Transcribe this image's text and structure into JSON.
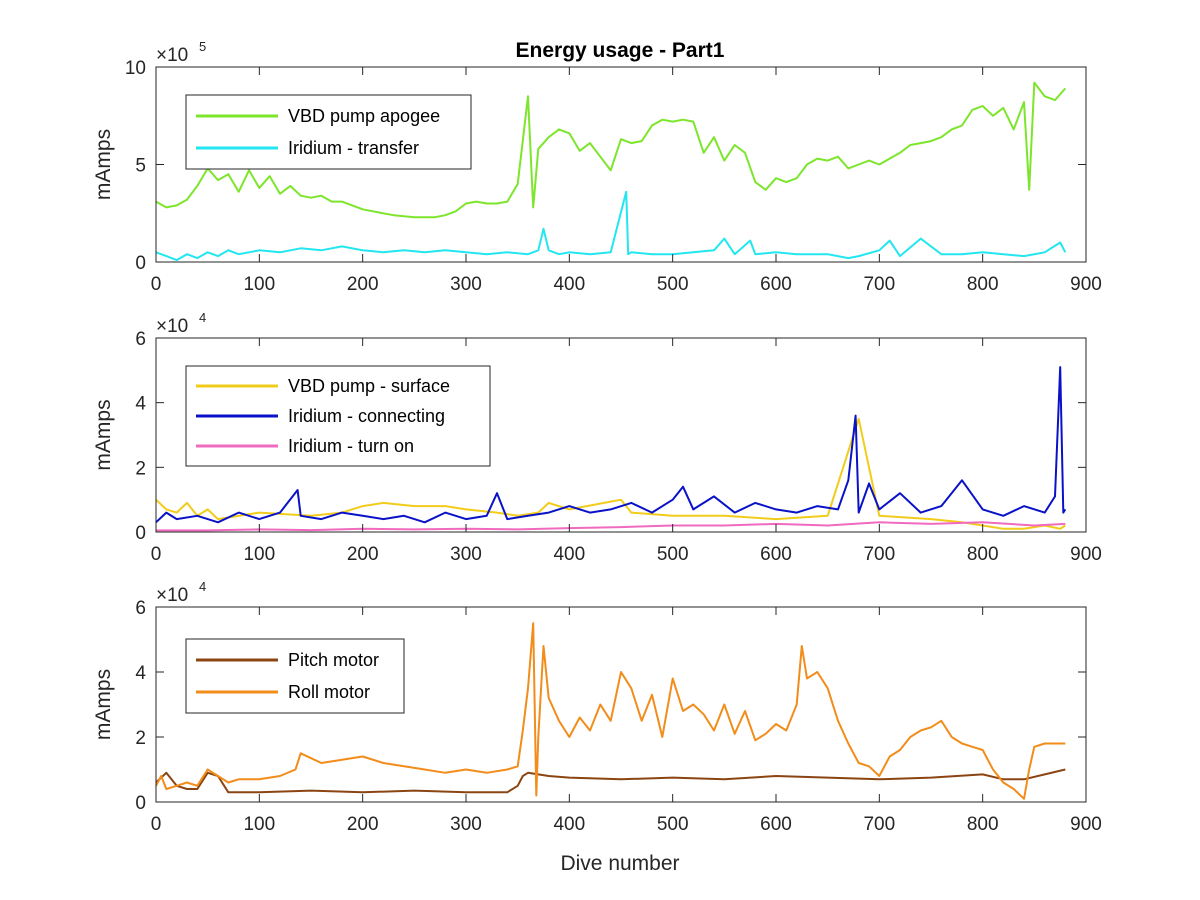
{
  "chart_data": [
    {
      "type": "line",
      "title": "Energy usage - Part1",
      "xlabel": "",
      "ylabel": "mAmps",
      "xlim": [
        0,
        900
      ],
      "ylim": [
        0,
        10
      ],
      "y_multiplier": "10",
      "y_exponent": "5",
      "xticks": [
        "0",
        "100",
        "200",
        "300",
        "400",
        "500",
        "600",
        "700",
        "800",
        "900"
      ],
      "yticks": [
        "0",
        "5",
        "10"
      ],
      "legend_position": "upper-left",
      "series": [
        {
          "name": "VBD pump apogee",
          "color": "#7de52b",
          "x": [
            0,
            10,
            20,
            30,
            40,
            50,
            60,
            70,
            80,
            90,
            100,
            110,
            120,
            130,
            140,
            150,
            160,
            170,
            180,
            190,
            200,
            210,
            220,
            230,
            240,
            250,
            260,
            270,
            280,
            290,
            300,
            310,
            320,
            330,
            340,
            350,
            360,
            365,
            370,
            380,
            390,
            400,
            410,
            420,
            430,
            440,
            450,
            460,
            470,
            480,
            490,
            500,
            510,
            520,
            530,
            540,
            550,
            560,
            570,
            580,
            590,
            600,
            610,
            620,
            630,
            640,
            650,
            660,
            670,
            680,
            690,
            700,
            710,
            720,
            730,
            740,
            750,
            760,
            770,
            780,
            790,
            800,
            810,
            820,
            830,
            840,
            845,
            850,
            860,
            870,
            880
          ],
          "values": [
            3.1,
            2.8,
            2.9,
            3.2,
            3.9,
            4.8,
            4.2,
            4.5,
            3.6,
            4.7,
            3.8,
            4.4,
            3.5,
            3.9,
            3.4,
            3.3,
            3.4,
            3.1,
            3.1,
            2.9,
            2.7,
            2.6,
            2.5,
            2.4,
            2.35,
            2.3,
            2.3,
            2.3,
            2.4,
            2.6,
            3.0,
            3.1,
            3.0,
            3.0,
            3.1,
            4.0,
            8.5,
            2.8,
            5.8,
            6.4,
            6.8,
            6.6,
            5.7,
            6.1,
            5.4,
            4.7,
            6.3,
            6.1,
            6.2,
            7.0,
            7.3,
            7.2,
            7.3,
            7.2,
            5.6,
            6.4,
            5.2,
            6.0,
            5.6,
            4.1,
            3.7,
            4.3,
            4.1,
            4.3,
            5.0,
            5.3,
            5.2,
            5.4,
            4.8,
            5.0,
            5.2,
            5.0,
            5.3,
            5.6,
            6.0,
            6.1,
            6.2,
            6.4,
            6.8,
            7.0,
            7.8,
            8.0,
            7.5,
            7.9,
            6.8,
            8.2,
            3.7,
            9.2,
            8.5,
            8.3,
            8.9
          ]
        },
        {
          "name": "Iridium - transfer",
          "color": "#22e6f0",
          "x": [
            0,
            10,
            20,
            30,
            40,
            50,
            60,
            70,
            80,
            90,
            100,
            120,
            140,
            160,
            180,
            200,
            220,
            240,
            260,
            280,
            300,
            320,
            340,
            360,
            370,
            375,
            380,
            390,
            400,
            420,
            440,
            455,
            457,
            460,
            480,
            500,
            520,
            540,
            550,
            560,
            575,
            580,
            600,
            620,
            650,
            670,
            680,
            700,
            710,
            720,
            740,
            760,
            780,
            800,
            820,
            840,
            860,
            875,
            880
          ],
          "values": [
            0.5,
            0.3,
            0.1,
            0.4,
            0.2,
            0.5,
            0.3,
            0.6,
            0.4,
            0.5,
            0.6,
            0.5,
            0.7,
            0.6,
            0.8,
            0.6,
            0.5,
            0.6,
            0.5,
            0.6,
            0.5,
            0.4,
            0.5,
            0.4,
            0.6,
            1.7,
            0.6,
            0.4,
            0.5,
            0.4,
            0.5,
            3.6,
            0.4,
            0.5,
            0.4,
            0.4,
            0.5,
            0.6,
            1.2,
            0.4,
            1.1,
            0.4,
            0.5,
            0.4,
            0.4,
            0.2,
            0.3,
            0.6,
            1.1,
            0.3,
            1.2,
            0.4,
            0.4,
            0.5,
            0.4,
            0.3,
            0.5,
            1.0,
            0.5
          ]
        }
      ]
    },
    {
      "type": "line",
      "title": "",
      "xlabel": "",
      "ylabel": "mAmps",
      "xlim": [
        0,
        900
      ],
      "ylim": [
        0,
        6
      ],
      "y_multiplier": "10",
      "y_exponent": "4",
      "xticks": [
        "0",
        "100",
        "200",
        "300",
        "400",
        "500",
        "600",
        "700",
        "800",
        "900"
      ],
      "yticks": [
        "0",
        "2",
        "4",
        "6"
      ],
      "legend_position": "upper-left",
      "series": [
        {
          "name": "VBD pump - surface",
          "color": "#f2cc1a",
          "x": [
            0,
            10,
            20,
            30,
            40,
            50,
            60,
            100,
            150,
            180,
            200,
            220,
            250,
            280,
            300,
            330,
            350,
            370,
            380,
            400,
            450,
            460,
            500,
            550,
            600,
            650,
            680,
            700,
            750,
            780,
            800,
            820,
            840,
            860,
            875,
            880
          ],
          "values": [
            1.0,
            0.7,
            0.6,
            0.9,
            0.5,
            0.7,
            0.4,
            0.6,
            0.5,
            0.6,
            0.8,
            0.9,
            0.8,
            0.8,
            0.7,
            0.6,
            0.5,
            0.6,
            0.9,
            0.7,
            1.0,
            0.6,
            0.5,
            0.5,
            0.4,
            0.5,
            3.5,
            0.5,
            0.4,
            0.3,
            0.2,
            0.1,
            0.1,
            0.2,
            0.1,
            0.2
          ]
        },
        {
          "name": "Iridium - connecting",
          "color": "#0a12c8",
          "x": [
            0,
            10,
            20,
            40,
            60,
            80,
            100,
            120,
            137,
            140,
            160,
            180,
            200,
            220,
            240,
            260,
            280,
            300,
            320,
            330,
            340,
            360,
            380,
            400,
            420,
            440,
            460,
            480,
            500,
            510,
            520,
            540,
            560,
            580,
            600,
            620,
            640,
            660,
            670,
            677,
            680,
            690,
            700,
            720,
            740,
            760,
            780,
            800,
            820,
            840,
            860,
            870,
            875,
            878,
            880
          ],
          "values": [
            0.3,
            0.6,
            0.4,
            0.5,
            0.3,
            0.6,
            0.4,
            0.6,
            1.3,
            0.5,
            0.4,
            0.6,
            0.5,
            0.4,
            0.5,
            0.3,
            0.6,
            0.4,
            0.5,
            1.2,
            0.4,
            0.5,
            0.6,
            0.8,
            0.6,
            0.7,
            0.9,
            0.6,
            1.0,
            1.4,
            0.7,
            1.1,
            0.6,
            0.9,
            0.7,
            0.6,
            0.8,
            0.7,
            1.6,
            3.6,
            0.6,
            1.5,
            0.7,
            1.2,
            0.6,
            0.8,
            1.6,
            0.7,
            0.5,
            0.8,
            0.6,
            1.1,
            5.1,
            0.6,
            0.7
          ]
        },
        {
          "name": "Iridium - turn on",
          "color": "#f06bbf",
          "x": [
            0,
            50,
            100,
            150,
            200,
            250,
            300,
            350,
            400,
            450,
            500,
            550,
            600,
            650,
            700,
            750,
            800,
            850,
            880
          ],
          "values": [
            0.05,
            0.05,
            0.08,
            0.06,
            0.1,
            0.08,
            0.1,
            0.08,
            0.12,
            0.15,
            0.2,
            0.2,
            0.25,
            0.2,
            0.3,
            0.25,
            0.3,
            0.2,
            0.25
          ]
        }
      ]
    },
    {
      "type": "line",
      "title": "",
      "xlabel": "Dive number",
      "ylabel": "mAmps",
      "xlim": [
        0,
        900
      ],
      "ylim": [
        0,
        6
      ],
      "y_multiplier": "10",
      "y_exponent": "4",
      "xticks": [
        "0",
        "100",
        "200",
        "300",
        "400",
        "500",
        "600",
        "700",
        "800",
        "900"
      ],
      "yticks": [
        "0",
        "2",
        "4",
        "6"
      ],
      "legend_position": "upper-left",
      "series": [
        {
          "name": "Pitch motor",
          "color": "#8b4513",
          "x": [
            0,
            10,
            20,
            30,
            40,
            50,
            60,
            70,
            100,
            150,
            200,
            250,
            300,
            340,
            350,
            355,
            360,
            370,
            380,
            400,
            450,
            500,
            550,
            600,
            650,
            700,
            750,
            800,
            820,
            840,
            860,
            880
          ],
          "values": [
            0.6,
            0.9,
            0.5,
            0.4,
            0.4,
            0.9,
            0.8,
            0.3,
            0.3,
            0.35,
            0.3,
            0.35,
            0.3,
            0.3,
            0.5,
            0.8,
            0.9,
            0.85,
            0.8,
            0.75,
            0.7,
            0.75,
            0.7,
            0.8,
            0.75,
            0.7,
            0.75,
            0.85,
            0.7,
            0.7,
            0.85,
            1.0
          ]
        },
        {
          "name": "Roll motor",
          "color": "#f28c1a",
          "x": [
            0,
            5,
            10,
            20,
            30,
            40,
            50,
            60,
            70,
            80,
            100,
            120,
            135,
            140,
            160,
            180,
            200,
            220,
            240,
            260,
            280,
            300,
            320,
            340,
            350,
            355,
            360,
            365,
            368,
            370,
            375,
            380,
            390,
            400,
            410,
            420,
            430,
            440,
            450,
            460,
            470,
            480,
            490,
            500,
            510,
            520,
            530,
            540,
            550,
            560,
            570,
            580,
            590,
            600,
            610,
            620,
            625,
            630,
            640,
            650,
            660,
            670,
            680,
            690,
            700,
            710,
            720,
            730,
            740,
            750,
            760,
            770,
            780,
            790,
            800,
            810,
            820,
            830,
            840,
            845,
            850,
            860,
            870,
            880
          ],
          "values": [
            0.5,
            0.8,
            0.4,
            0.5,
            0.6,
            0.5,
            1.0,
            0.8,
            0.6,
            0.7,
            0.7,
            0.8,
            1.0,
            1.5,
            1.2,
            1.3,
            1.4,
            1.2,
            1.1,
            1.0,
            0.9,
            1.0,
            0.9,
            1.0,
            1.1,
            2.2,
            3.5,
            5.5,
            0.2,
            2.0,
            4.8,
            3.2,
            2.5,
            2.0,
            2.6,
            2.2,
            3.0,
            2.5,
            4.0,
            3.5,
            2.5,
            3.3,
            2.0,
            3.8,
            2.8,
            3.0,
            2.7,
            2.2,
            3.0,
            2.1,
            2.8,
            1.9,
            2.1,
            2.4,
            2.2,
            3.0,
            4.8,
            3.8,
            4.0,
            3.5,
            2.5,
            1.8,
            1.2,
            1.1,
            0.8,
            1.4,
            1.6,
            2.0,
            2.2,
            2.3,
            2.5,
            2.0,
            1.8,
            1.7,
            1.6,
            1.0,
            0.6,
            0.4,
            0.1,
            1.0,
            1.7,
            1.8,
            1.8,
            1.8
          ]
        }
      ]
    }
  ]
}
